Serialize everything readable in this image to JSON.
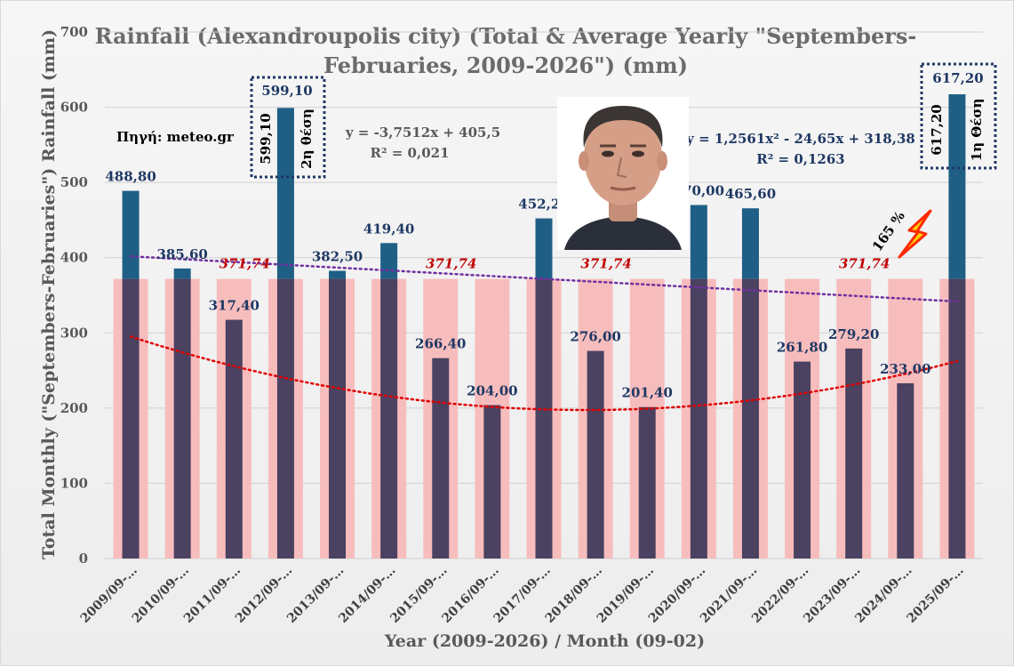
{
  "chart_data": {
    "type": "bar",
    "title_line1": "Rainfall (Alexandroupolis city) (Total & Average Yearly \"Septembers-",
    "title_line2": "Februaries, 2009-2026\") (mm)",
    "xlabel": "Year (2009-2026) / Month (09-02)",
    "ylabel": "Total Monthly (\"Septembers-Februaries\") Rainfall (mm)",
    "ylim": [
      0,
      700
    ],
    "yticks": [
      "0",
      "100",
      "200",
      "300",
      "400",
      "500",
      "600",
      "700"
    ],
    "grid": true,
    "categories": [
      "2009/09-…",
      "2010/09-…",
      "2011/09-…",
      "2012/09-…",
      "2013/09-…",
      "2014/09-…",
      "2015/09-…",
      "2016/09-…",
      "2017/09-…",
      "2018/09-…",
      "2019/09-…",
      "2020/09-…",
      "2021/09-…",
      "2022/09-…",
      "2023/09-…",
      "2024/09-…",
      "2025/09-…"
    ],
    "series": [
      {
        "values": [
          488.8,
          385.6,
          317.4,
          599.1,
          382.5,
          419.4,
          266.4,
          204.0,
          452.2,
          276.0,
          201.4,
          470.0,
          465.6,
          261.8,
          279.2,
          233.0,
          617.2
        ],
        "labels": [
          "488,80",
          "385,60",
          "317,40",
          "599,10",
          "382,50",
          "419,40",
          "266,40",
          "204,00",
          "452,20",
          "276,00",
          "201,40",
          "470,00",
          "465,60",
          "261,80",
          "279,20",
          "233,00",
          "617,20"
        ]
      },
      {
        "value": 371.74,
        "avg_label": "371,74",
        "avg_label_indices": [
          2,
          6,
          9,
          14
        ]
      }
    ],
    "trend_linear": {
      "equation": "y = -3,7512x + 405,5",
      "r2": "R² = 0,021",
      "a": -3.7512,
      "b": 405.5
    },
    "trend_poly": {
      "equation": "y = 1,2561x² - 24,65x + 318,38",
      "r2": "R² = 0,1263",
      "a": 1.2561,
      "b": -24.65,
      "c": 318.38
    },
    "colors": {
      "above_avg_bar": "#1f5f86",
      "below_avg_bar": "#4b4160",
      "avg_bar": "#f7bdbd",
      "linear_trend": "#7030a0",
      "poly_trend": "#e00000",
      "title": "#6b6b6b"
    }
  },
  "annotations": {
    "source": "Πηγή: meteo.gr",
    "rank2_value": "599,10",
    "rank2_vertical_value": "599,10",
    "rank2_vertical_label": "2η θέση",
    "rank1_value": "617,20",
    "rank1_vertical_value": "617,20",
    "rank1_vertical_label": "1η Θέση",
    "percent": "165 %",
    "bolt_icon": "lightning-bolt-icon",
    "portrait": "man-portrait-photo"
  }
}
